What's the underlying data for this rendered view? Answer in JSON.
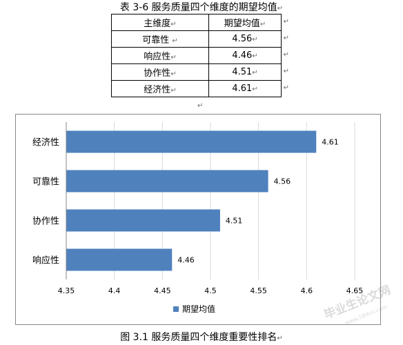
{
  "table_caption": "表 3-6 服务质量四个维度的期望均值",
  "table": {
    "headers": [
      "主维度",
      "期望均值"
    ],
    "rows": [
      [
        "可靠性",
        "4.56"
      ],
      [
        "响应性",
        "4.46"
      ],
      [
        "协作性",
        "4.51"
      ],
      [
        "经济性",
        "4.61"
      ]
    ]
  },
  "paragraph_mark": "↵",
  "figure_caption": "图 3.1 服务质量四个维度重要性排名",
  "watermark": "毕业生论文网",
  "watermark_sub": "www.589vv.com",
  "chart_data": {
    "type": "bar",
    "orientation": "horizontal",
    "categories": [
      "经济性",
      "可靠性",
      "协作性",
      "响应性"
    ],
    "series": [
      {
        "name": "期望均值",
        "values": [
          4.61,
          4.56,
          4.51,
          4.46
        ],
        "color": "#4f81bd"
      }
    ],
    "data_labels": [
      "4.61",
      "4.56",
      "4.51",
      "4.46"
    ],
    "x_ticks": [
      "4.35",
      "4.4",
      "4.45",
      "4.5",
      "4.55",
      "4.6",
      "4.65"
    ],
    "xlim": [
      4.35,
      4.65
    ],
    "title": "",
    "xlabel": "",
    "ylabel": "",
    "grid": true,
    "legend_position": "bottom"
  }
}
